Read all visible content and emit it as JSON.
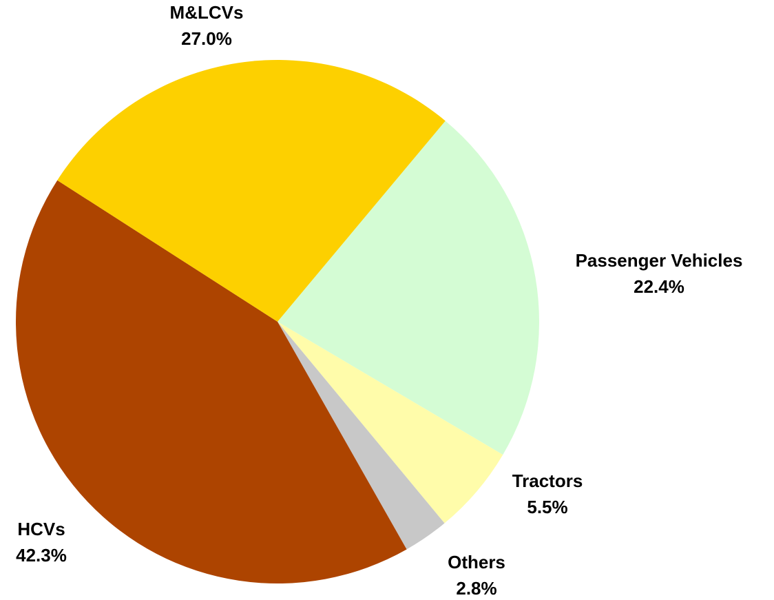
{
  "chart_data": {
    "type": "pie",
    "categories": [
      "Passenger Vehicles",
      "Tractors",
      "Others",
      "HCVs",
      "M&LCVs"
    ],
    "values": [
      22.4,
      5.5,
      2.8,
      42.3,
      27.0
    ],
    "value_labels": [
      "22.4%",
      "5.5%",
      "2.8%",
      "42.3%",
      "27.0%"
    ],
    "colors": [
      "#d4fcd4",
      "#fffcaa",
      "#c8c8c8",
      "#ad4400",
      "#fdd000"
    ]
  }
}
